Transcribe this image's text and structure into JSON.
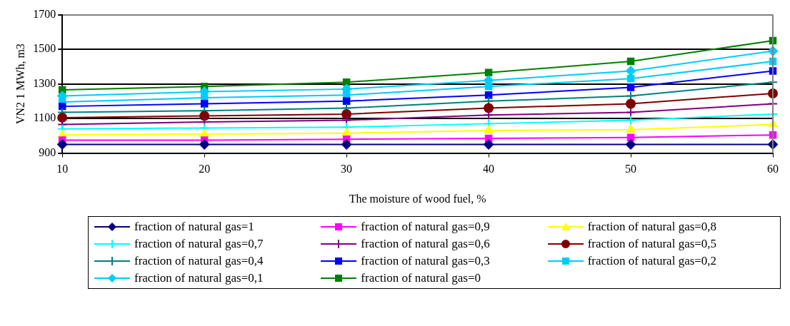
{
  "chart_data": {
    "type": "line",
    "xlabel": "The moisture of wood fuel, %",
    "ylabel": "VN2 1 MWh, m3",
    "x": [
      10,
      20,
      30,
      40,
      50,
      60
    ],
    "xlim": [
      10,
      60
    ],
    "xticks": [
      10,
      20,
      30,
      40,
      50,
      60
    ],
    "ylim": [
      900,
      1700
    ],
    "yticks": [
      900,
      1100,
      1300,
      1500,
      1700
    ],
    "grid": "y",
    "legend": "bottom",
    "series": [
      {
        "name": "fraction of natural gas=1",
        "color": "#000080",
        "marker": "diamond",
        "values": [
          950,
          950,
          950,
          950,
          950,
          950
        ]
      },
      {
        "name": "fraction of natural gas=0,9",
        "color": "#ff00ff",
        "marker": "square",
        "values": [
          975,
          975,
          980,
          985,
          990,
          1005
        ]
      },
      {
        "name": "fraction of natural gas=0,8",
        "color": "#ffff00",
        "marker": "triangle",
        "values": [
          1005,
          1010,
          1015,
          1030,
          1035,
          1065
        ]
      },
      {
        "name": "fraction of natural gas=0,7",
        "color": "#00ffff",
        "marker": "cross",
        "values": [
          1040,
          1045,
          1050,
          1070,
          1090,
          1125
        ]
      },
      {
        "name": "fraction of natural gas=0,6",
        "color": "#800080",
        "marker": "cross",
        "values": [
          1065,
          1080,
          1090,
          1120,
          1135,
          1185
        ]
      },
      {
        "name": "fraction of natural gas=0,5",
        "color": "#800000",
        "marker": "circle",
        "values": [
          1105,
          1115,
          1125,
          1160,
          1185,
          1245
        ]
      },
      {
        "name": "fraction of natural gas=0,4",
        "color": "#008080",
        "marker": "cross",
        "values": [
          1135,
          1145,
          1160,
          1200,
          1230,
          1310
        ]
      },
      {
        "name": "fraction of natural gas=0,3",
        "color": "#0000ff",
        "marker": "square",
        "values": [
          1170,
          1185,
          1200,
          1235,
          1280,
          1375
        ]
      },
      {
        "name": "fraction of natural gas=0,2",
        "color": "#00ccff",
        "marker": "square",
        "values": [
          1195,
          1220,
          1235,
          1285,
          1330,
          1430
        ]
      },
      {
        "name": "fraction of natural gas=0,1",
        "color": "#00ccff",
        "marker": "diamond",
        "values": [
          1230,
          1255,
          1270,
          1320,
          1375,
          1490
        ]
      },
      {
        "name": "fraction of natural gas=0",
        "color": "#008000",
        "marker": "square",
        "values": [
          1265,
          1285,
          1310,
          1365,
          1430,
          1550
        ]
      }
    ]
  }
}
